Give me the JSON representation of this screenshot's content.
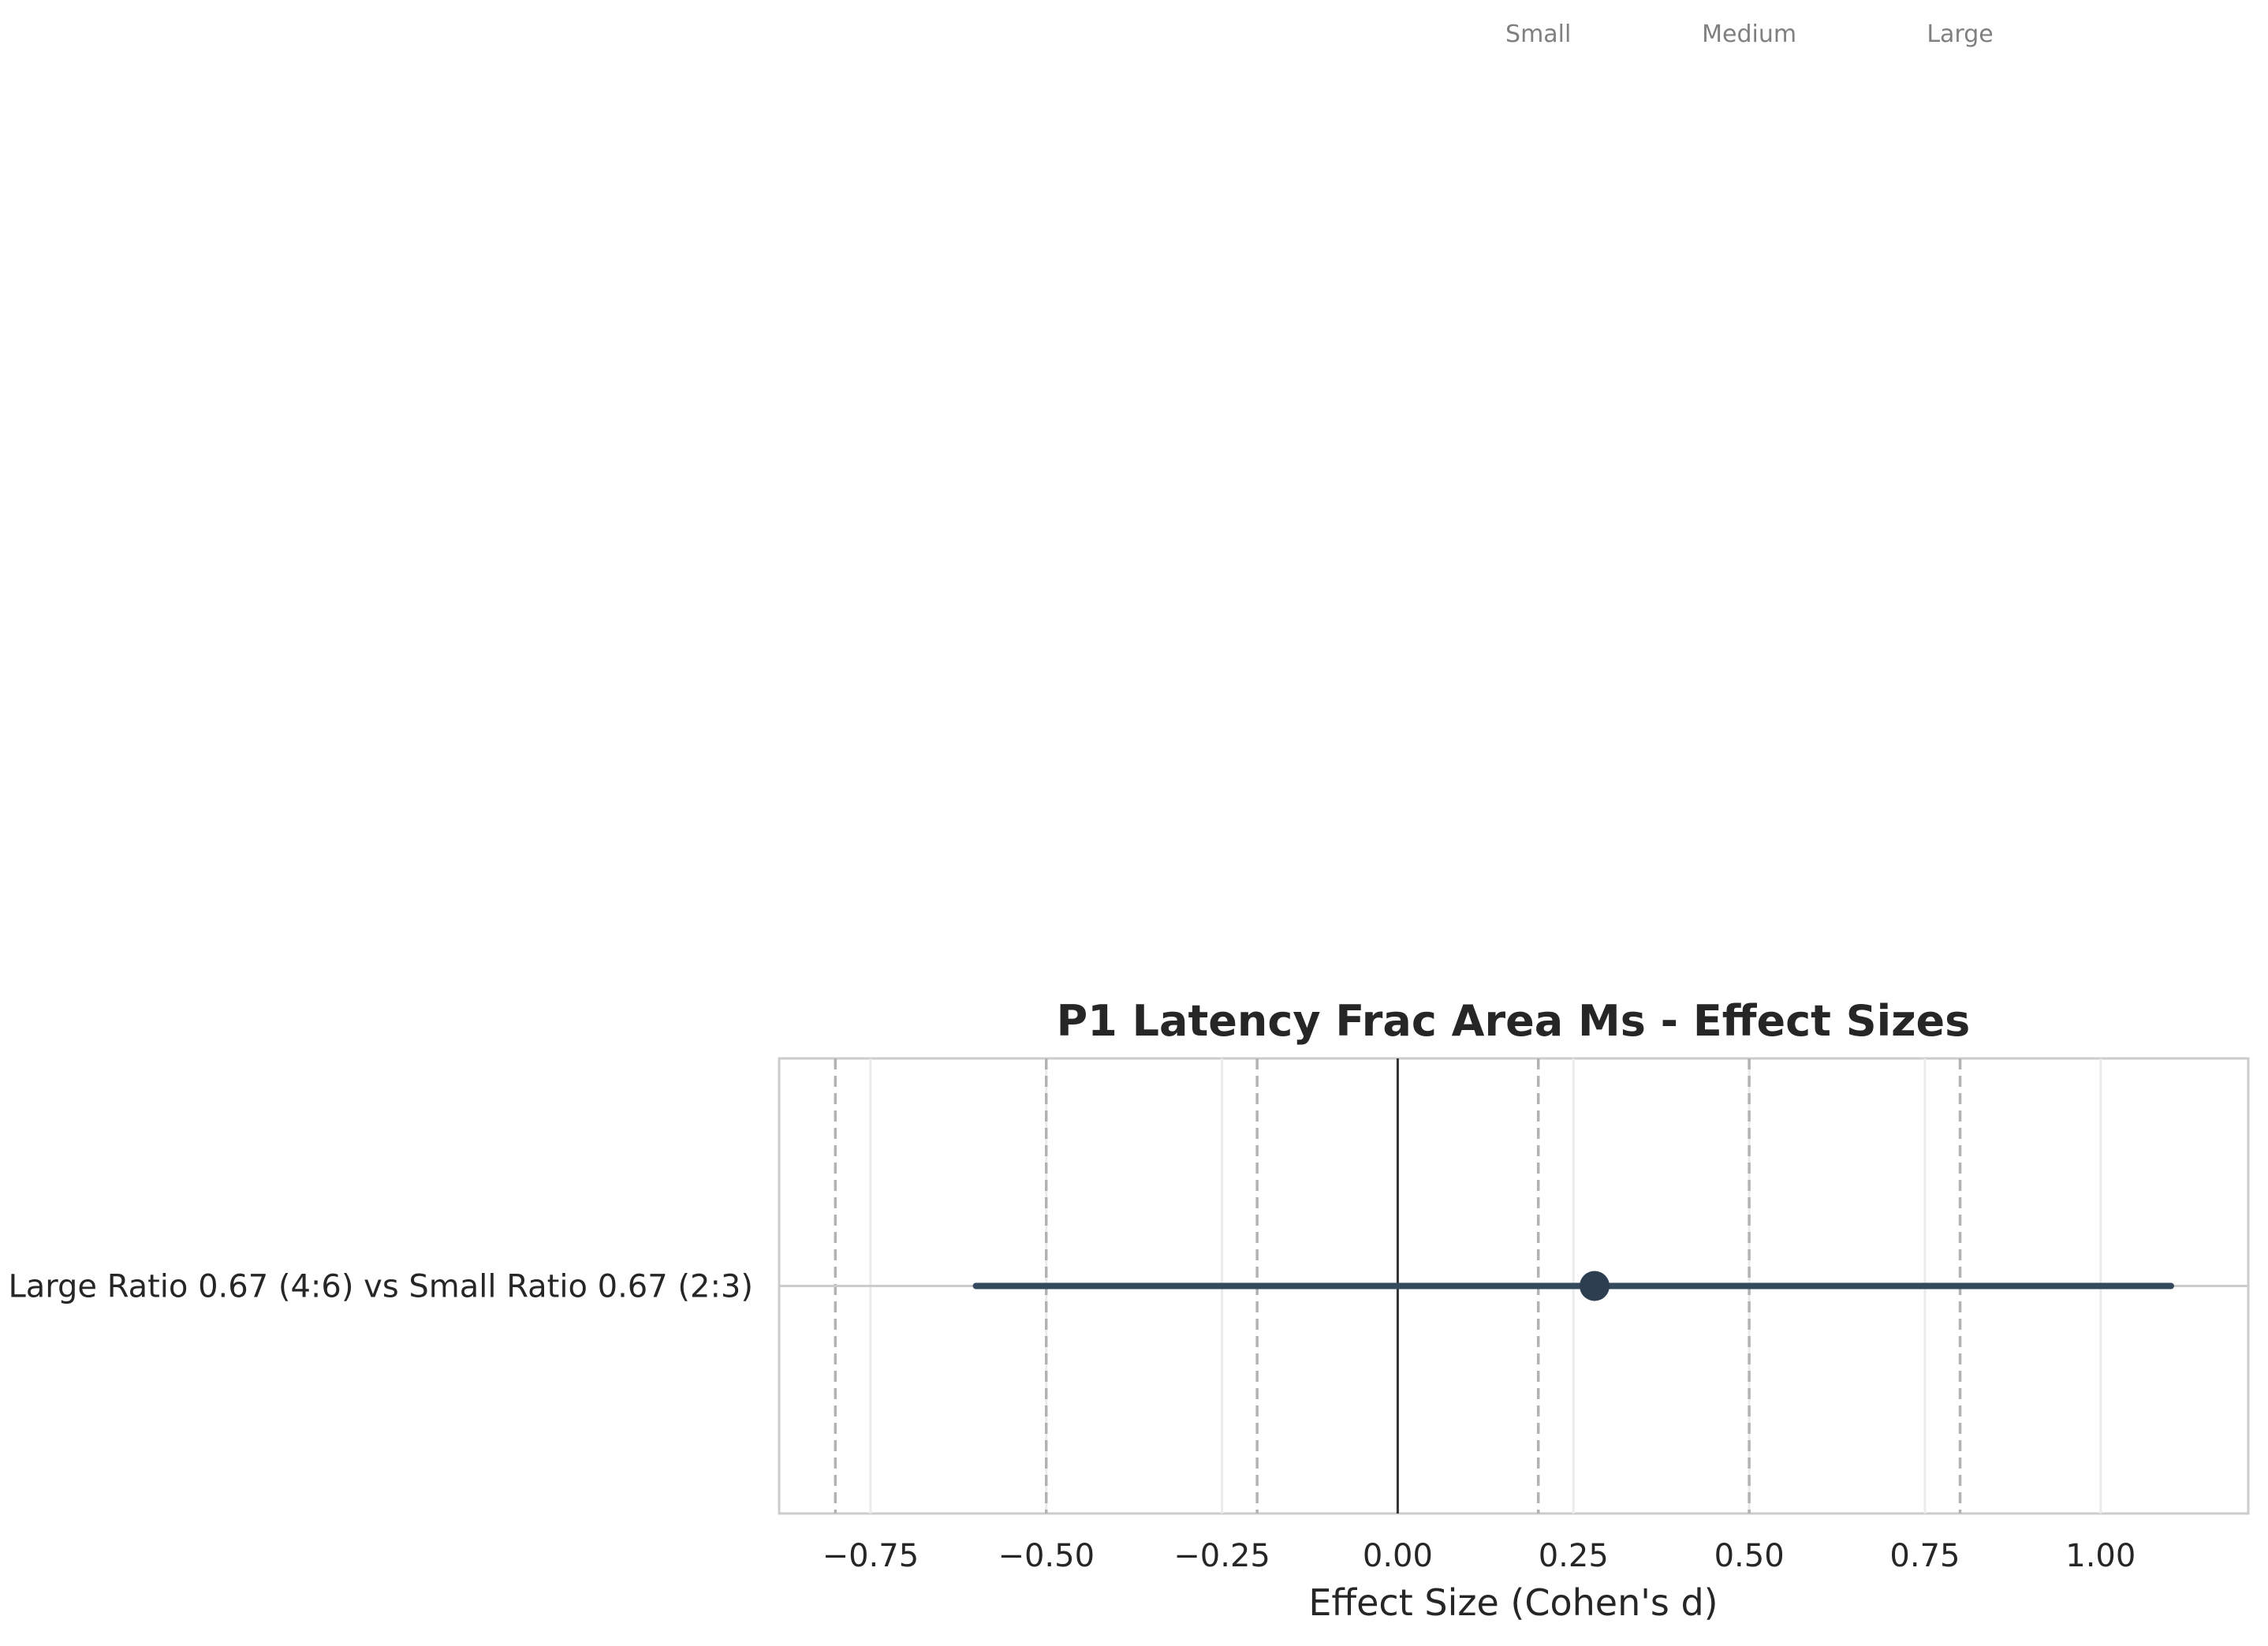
{
  "chart_data": {
    "type": "forest",
    "title": "P1 Latency Frac Area Ms - Effect Sizes",
    "xlabel": "Effect Size (Cohen's d)",
    "ylabel": "",
    "xlim": [
      -0.88,
      1.21
    ],
    "xticks": [
      -0.75,
      -0.5,
      -0.25,
      0.0,
      0.25,
      0.5,
      0.75,
      1.0
    ],
    "xtick_labels": [
      "−0.75",
      "−0.50",
      "−0.25",
      "0.00",
      "0.25",
      "0.50",
      "0.75",
      "1.00"
    ],
    "grid": true,
    "comparisons": [
      {
        "label": "Large Ratio 0.67 (4:6) vs Small Ratio 0.67 (2:3)",
        "effect": 0.28,
        "ci_low": -0.6,
        "ci_high": 1.1
      }
    ],
    "zero_line": 0.0,
    "reference_lines": [
      -0.8,
      -0.5,
      -0.2,
      0.2,
      0.5,
      0.8
    ],
    "reference_labels": [
      {
        "label": "Small",
        "value": 0.2
      },
      {
        "label": "Medium",
        "value": 0.5
      },
      {
        "label": "Large",
        "value": 0.8
      }
    ],
    "colors": {
      "marker": "#2c3e50",
      "ci_line": "#34495e",
      "zero_line": "#333333",
      "reference_line": "#b3b3b3",
      "grid": "#ebebeb",
      "frame": "#cccccc"
    }
  }
}
